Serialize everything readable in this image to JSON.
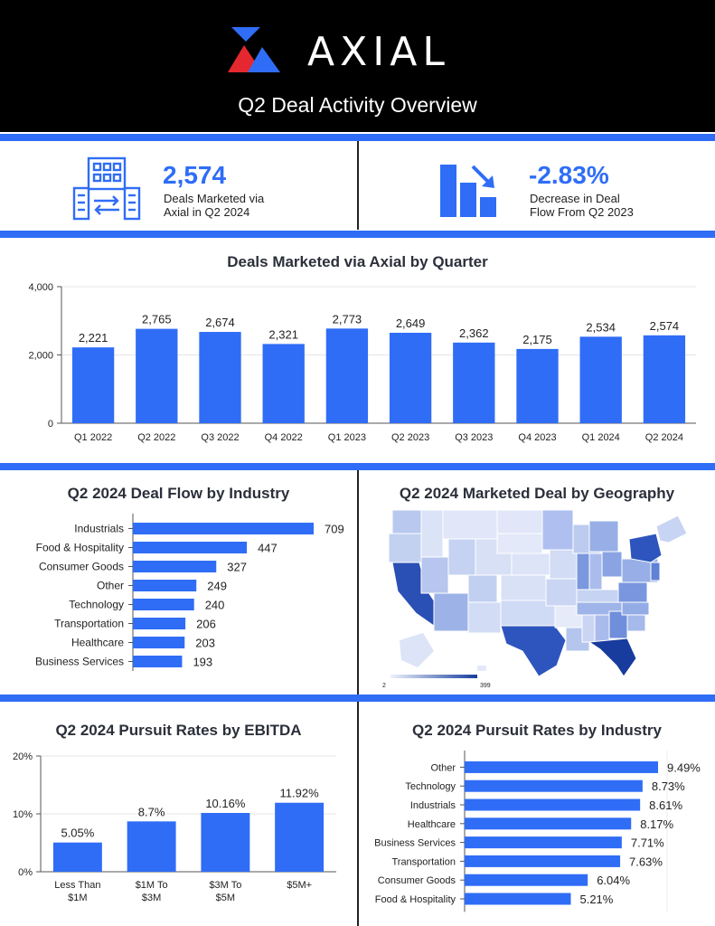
{
  "header": {
    "logo_text": "AXIAL",
    "title": "Q2 Deal Activity Overview"
  },
  "stats": {
    "deals": {
      "value": "2,574",
      "description": "Deals Marketed via Axial in Q2 2024",
      "icon": "buildings-exchange-icon"
    },
    "change": {
      "value": "-2.83%",
      "description": "Decrease in Deal Flow From Q2 2023",
      "icon": "declining-bars-icon"
    }
  },
  "colors": {
    "accent": "#2f6df6",
    "header_bg": "#000000",
    "logo_red": "#e5282f"
  },
  "chart_data": [
    {
      "type": "bar",
      "title": "Deals Marketed via Axial by Quarter",
      "categories": [
        "Q1 2022",
        "Q2 2022",
        "Q3 2022",
        "Q4 2022",
        "Q1 2023",
        "Q2 2023",
        "Q3 2023",
        "Q4 2023",
        "Q1 2024",
        "Q2 2024"
      ],
      "values": [
        2221,
        2765,
        2674,
        2321,
        2773,
        2649,
        2362,
        2175,
        2534,
        2574
      ],
      "value_labels": [
        "2,221",
        "2,765",
        "2,674",
        "2,321",
        "2,773",
        "2,649",
        "2,362",
        "2,175",
        "2,534",
        "2,574"
      ],
      "y_ticks": [
        "4,000",
        "2,000",
        "0"
      ],
      "ylim": [
        0,
        4000
      ],
      "grid": true
    },
    {
      "type": "bar",
      "orientation": "horizontal",
      "title": "Q2 2024 Deal Flow by Industry",
      "categories": [
        "Industrials",
        "Food & Hospitality",
        "Consumer Goods",
        "Other",
        "Technology",
        "Transportation",
        "Healthcare",
        "Business Services"
      ],
      "values": [
        709,
        447,
        327,
        249,
        240,
        206,
        203,
        193
      ],
      "xlim": [
        0,
        709
      ]
    },
    {
      "type": "heatmap",
      "title": "Q2 2024 Marketed Deal by Geography",
      "legend": {
        "min": "2",
        "max": "399"
      }
    },
    {
      "type": "bar",
      "title": "Q2 2024 Pursuit Rates by EBITDA",
      "categories": [
        "Less Than $1M",
        "$1M To $3M",
        "$3M To $5M",
        "$5M+"
      ],
      "values": [
        5.05,
        8.7,
        10.16,
        11.92
      ],
      "value_labels": [
        "5.05%",
        "8.7%",
        "10.16%",
        "11.92%"
      ],
      "y_ticks": [
        "20%",
        "10%",
        "0%"
      ],
      "ylim": [
        0,
        20
      ],
      "grid": true
    },
    {
      "type": "bar",
      "orientation": "horizontal",
      "title": "Q2 2024 Pursuit Rates by Industry",
      "categories": [
        "Other",
        "Technology",
        "Industrials",
        "Healthcare",
        "Business Services",
        "Transportation",
        "Consumer Goods",
        "Food & Hospitality"
      ],
      "values": [
        9.49,
        8.73,
        8.61,
        8.17,
        7.71,
        7.63,
        6.04,
        5.21
      ],
      "value_labels": [
        "9.49%",
        "8.73%",
        "8.61%",
        "8.17%",
        "7.71%",
        "7.63%",
        "6.04%",
        "5.21%"
      ],
      "xlim": [
        0,
        9.49
      ]
    }
  ]
}
